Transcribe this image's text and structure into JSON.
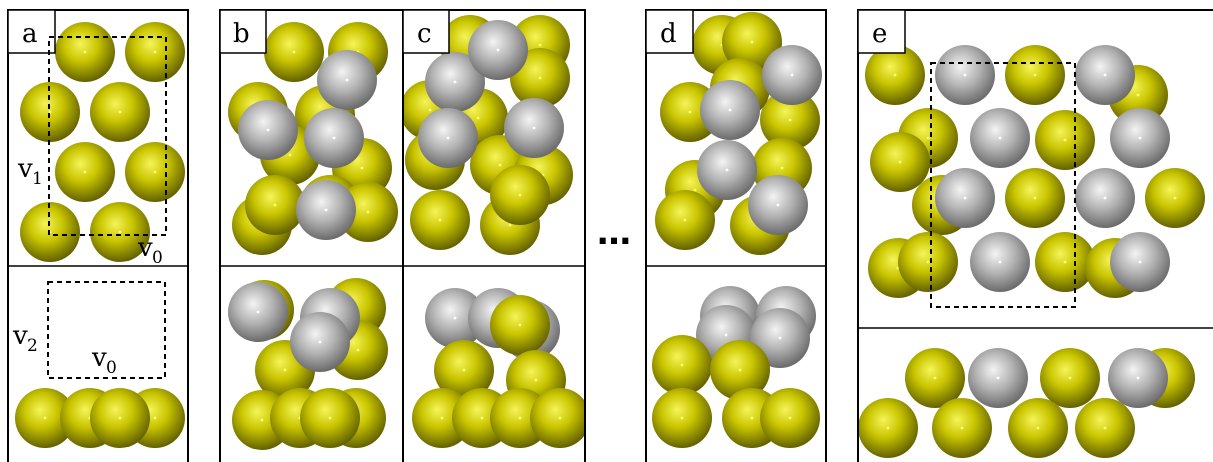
{
  "figure": {
    "panel_labels": {
      "a": "a",
      "b": "b",
      "c": "c",
      "d": "d",
      "e": "e"
    },
    "ellipsis": "…",
    "vector_labels": {
      "v1_main": "v",
      "v1_sub": "1",
      "v0_top_main": "v",
      "v0_top_sub": "0",
      "v2_main": "v",
      "v2_sub": "2",
      "v0_bottom_main": "v",
      "v0_bottom_sub": "0"
    }
  },
  "colors": {
    "gold_atom": "#c8c400",
    "gold_atom_light": "#f2f04a",
    "gold_atom_dark": "#6a6800",
    "silver_atom": "#b5b5b5",
    "silver_atom_light": "#f0f0f0",
    "silver_atom_dark": "#6f6f6f",
    "frame": "#000000",
    "background": "#ffffff"
  },
  "atom_types": [
    "gold",
    "silver"
  ]
}
